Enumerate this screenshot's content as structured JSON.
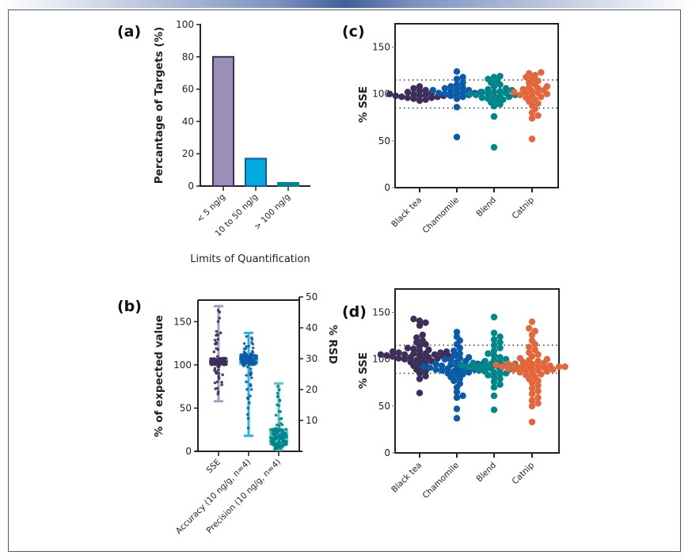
{
  "figure": {
    "frame_color": "#3b5a9a",
    "panels": [
      "a",
      "b",
      "c",
      "d"
    ]
  },
  "chart_data": [
    {
      "id": "a",
      "panel_label": "(a)",
      "type": "bar",
      "title": "",
      "xlabel": "Limits of Quantification",
      "ylabel": "Percantage of Targets (%)",
      "ylim": [
        0,
        100
      ],
      "yticks": [
        0,
        20,
        40,
        60,
        80,
        100
      ],
      "categories": [
        "< 5 ng/g",
        "10 to 50 ng/g",
        "> 100 ng/g"
      ],
      "values": [
        80,
        17,
        2
      ],
      "colors": {
        "fills": [
          "#9b8fb7",
          "#00a9de",
          "#00858a"
        ],
        "strokes": [
          "#3d2e5c",
          "#0a5ba8",
          "#00858a"
        ]
      },
      "grid": false
    },
    {
      "id": "b",
      "panel_label": "(b)",
      "type": "scatter",
      "subtype": "violin-dot with box",
      "xlabel": "",
      "ylabel": "% of expected value",
      "y2label": "% RSD",
      "ylim": [
        0,
        175
      ],
      "yticks": [
        0,
        50,
        100,
        150
      ],
      "y2lim": [
        0,
        50
      ],
      "y2ticks": [
        10,
        20,
        30,
        40,
        50
      ],
      "categories": [
        "SSE",
        "Accuracy (10 ng/g, n=4)",
        "Precision (10 ng/g, n=4)"
      ],
      "series": [
        {
          "name": "SSE",
          "axis": "left",
          "min": 58,
          "q1": 100,
          "median": 104,
          "q3": 108,
          "max": 168,
          "color_dark": "#3d2e5c",
          "color_light": "#a99cc8"
        },
        {
          "name": "Accuracy (10 ng/g, n=4)",
          "axis": "left",
          "min": 18,
          "q1": 100,
          "median": 107,
          "q3": 112,
          "max": 137,
          "color_dark": "#0a5ba8",
          "color_light": "#2bb3e6"
        },
        {
          "name": "Precision (10 ng/g, n=4)",
          "axis": "right",
          "min": 0.5,
          "q1": 2,
          "median": 4.5,
          "q3": 7.5,
          "max": 22,
          "color_dark": "#00858a",
          "color_light": "#5ec3c7"
        }
      ],
      "grid": false
    },
    {
      "id": "c",
      "panel_label": "(c)",
      "type": "scatter",
      "subtype": "beeswarm",
      "xlabel": "",
      "ylabel": "% SSE",
      "ylim": [
        0,
        175
      ],
      "yticks": [
        0,
        50,
        100,
        150
      ],
      "reference_lines": [
        85,
        115
      ],
      "categories": [
        "Black tea",
        "Chamomile",
        "Blend",
        "Catnip"
      ],
      "series": [
        {
          "name": "Black tea",
          "color": "#3d2e5c",
          "values": [
            93,
            94,
            95,
            96,
            96,
            97,
            97,
            98,
            98,
            98,
            99,
            99,
            100,
            100,
            101,
            102,
            103,
            104,
            106,
            108
          ]
        },
        {
          "name": "Chamomile",
          "color": "#0a5ba8",
          "values": [
            54,
            86,
            95,
            97,
            98,
            99,
            100,
            100,
            101,
            101,
            102,
            102,
            103,
            104,
            104,
            105,
            106,
            107,
            108,
            110,
            112,
            116,
            118,
            124
          ]
        },
        {
          "name": "Blend",
          "color": "#00858a",
          "values": [
            43,
            76,
            87,
            89,
            91,
            93,
            94,
            95,
            96,
            97,
            97,
            98,
            99,
            99,
            100,
            100,
            101,
            102,
            102,
            103,
            104,
            105,
            106,
            108,
            110,
            112,
            114,
            116,
            118,
            119
          ]
        },
        {
          "name": "Catnip",
          "color": "#e3673a",
          "values": [
            52,
            74,
            77,
            80,
            84,
            88,
            90,
            92,
            94,
            96,
            97,
            98,
            99,
            100,
            101,
            101,
            102,
            103,
            104,
            105,
            106,
            107,
            108,
            110,
            112,
            114,
            116,
            118,
            120,
            122,
            123
          ]
        }
      ],
      "grid": false
    },
    {
      "id": "d",
      "panel_label": "(d)",
      "type": "scatter",
      "subtype": "beeswarm",
      "xlabel": "",
      "ylabel": "% SSE",
      "ylim": [
        0,
        175
      ],
      "yticks": [
        0,
        50,
        100,
        150
      ],
      "reference_lines": [
        85,
        115
      ],
      "categories": [
        "Black tea",
        "Chamomile",
        "Blend",
        "Catnip"
      ],
      "series": [
        {
          "name": "Black tea",
          "color": "#3d2e5c",
          "values": [
            64,
            79,
            82,
            85,
            87,
            89,
            91,
            93,
            95,
            96,
            97,
            98,
            99,
            100,
            100,
            101,
            101,
            102,
            102,
            103,
            103,
            103,
            104,
            104,
            104,
            105,
            105,
            105,
            106,
            106,
            107,
            107,
            108,
            108,
            109,
            110,
            111,
            112,
            114,
            116,
            118,
            120,
            123,
            126,
            136,
            139,
            141,
            143
          ]
        },
        {
          "name": "Chamomile",
          "color": "#0a5ba8",
          "values": [
            37,
            47,
            59,
            61,
            65,
            70,
            74,
            77,
            79,
            81,
            83,
            84,
            85,
            86,
            87,
            88,
            88,
            89,
            89,
            90,
            90,
            91,
            91,
            92,
            92,
            92,
            93,
            93,
            93,
            94,
            94,
            95,
            95,
            96,
            97,
            98,
            99,
            100,
            101,
            102,
            104,
            106,
            109,
            112,
            116,
            120,
            124,
            129
          ]
        },
        {
          "name": "Blend",
          "color": "#00858a",
          "values": [
            46,
            61,
            70,
            73,
            76,
            79,
            81,
            83,
            84,
            85,
            86,
            87,
            88,
            89,
            89,
            90,
            90,
            91,
            91,
            92,
            92,
            92,
            93,
            93,
            93,
            94,
            94,
            95,
            95,
            96,
            97,
            98,
            99,
            100,
            102,
            104,
            106,
            109,
            112,
            115,
            118,
            121,
            124,
            128,
            145
          ]
        },
        {
          "name": "Catnip",
          "color": "#e3673a",
          "values": [
            33,
            50,
            53,
            56,
            59,
            63,
            66,
            69,
            72,
            75,
            77,
            79,
            81,
            83,
            84,
            85,
            86,
            87,
            88,
            88,
            89,
            89,
            90,
            90,
            91,
            91,
            92,
            92,
            92,
            93,
            93,
            93,
            94,
            94,
            95,
            95,
            96,
            97,
            98,
            99,
            100,
            101,
            103,
            105,
            107,
            110,
            113,
            116,
            120,
            126,
            130,
            133,
            140
          ]
        }
      ],
      "grid": false
    }
  ]
}
